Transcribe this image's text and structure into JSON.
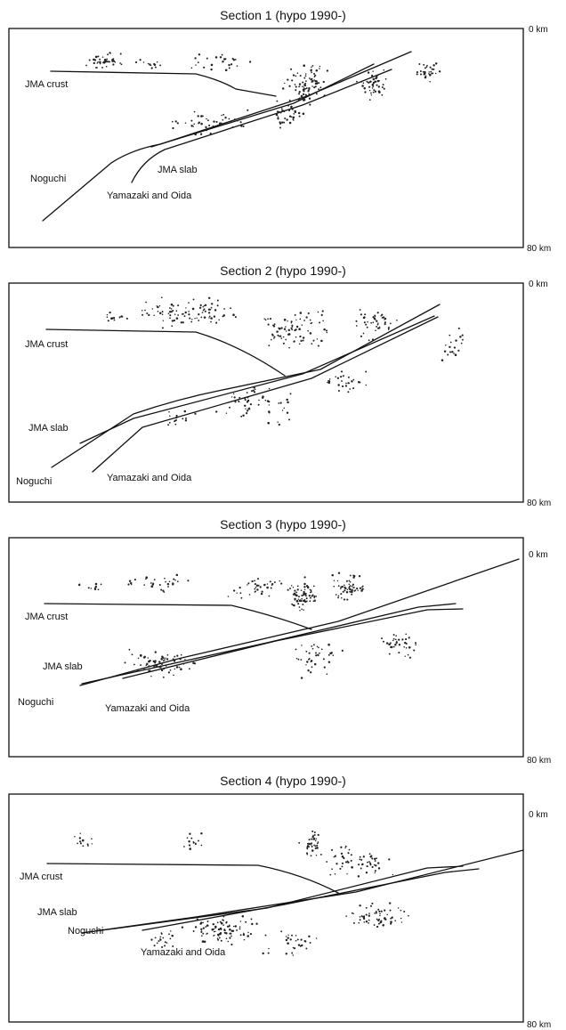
{
  "sections": [
    {
      "title": "Section 1 (hypo 1990-)",
      "depth_top": "0 km",
      "depth_bottom": "80 km",
      "labels": {
        "crust": "JMA crust",
        "noguchi": "Noguchi",
        "slab": "JMA slab",
        "yamazaki": "Yamazaki and Oida"
      }
    },
    {
      "title": "Section 2 (hypo 1990-)",
      "depth_top": "0 km",
      "depth_bottom": "80 km",
      "labels": {
        "crust": "JMA crust",
        "slab": "JMA slab",
        "noguchi": "Noguchi",
        "yamazaki": "Yamazaki and Oida"
      }
    },
    {
      "title": "Section 3 (hypo 1990-)",
      "depth_top": "0 km",
      "depth_bottom": "80 km",
      "labels": {
        "crust": "JMA crust",
        "slab": "JMA slab",
        "noguchi": "Noguchi",
        "yamazaki": "Yamazaki and Oida"
      }
    },
    {
      "title": "Section 4 (hypo 1990-)",
      "depth_top": "0 km",
      "depth_bottom": "80 km",
      "labels": {
        "crust": "JMA crust",
        "slab": "JMA slab",
        "noguchi": "Noguchi",
        "yamazaki": "Yamazaki and Oida"
      }
    }
  ]
}
